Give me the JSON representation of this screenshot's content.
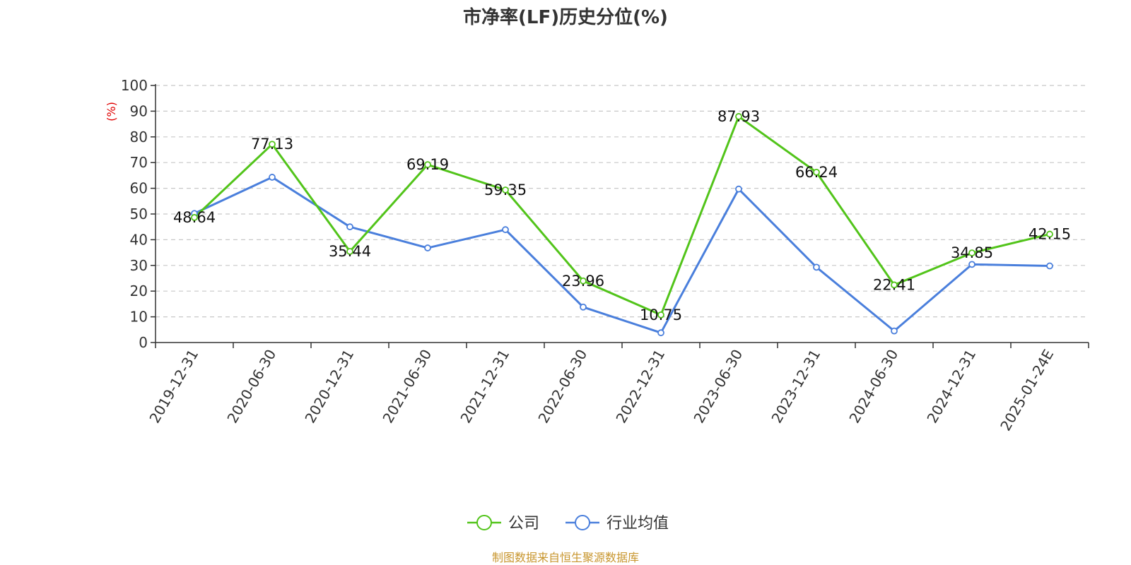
{
  "chart_data": {
    "type": "line",
    "title": "市净率(LF)历史分位(%)",
    "ylabel": "(%)",
    "ylim": [
      0,
      100
    ],
    "yticks": [
      0,
      10,
      20,
      30,
      40,
      50,
      60,
      70,
      80,
      90,
      100
    ],
    "grid": true,
    "categories": [
      "2019-12-31",
      "2020-06-30",
      "2020-12-31",
      "2021-06-30",
      "2021-12-31",
      "2022-06-30",
      "2022-12-31",
      "2023-06-30",
      "2023-12-31",
      "2024-06-30",
      "2024-12-31",
      "2025-01-24E"
    ],
    "series": [
      {
        "name": "公司",
        "color": "#52c41a",
        "values": [
          48.64,
          77.13,
          35.44,
          69.19,
          59.35,
          23.96,
          10.75,
          87.93,
          66.24,
          22.41,
          34.85,
          42.15
        ],
        "labels": [
          "48.64",
          "77.13",
          "35.44",
          "69.19",
          "59.35",
          "23.96",
          "10.75",
          "87.93",
          "66.24",
          "22.41",
          "34.85",
          "42.15"
        ]
      },
      {
        "name": "行业均值",
        "color": "#4a7fdc",
        "values": [
          50.2,
          64.3,
          45.0,
          36.8,
          43.9,
          13.8,
          3.8,
          59.7,
          29.3,
          4.5,
          30.4,
          29.8
        ]
      }
    ],
    "legend_position": "bottom-center",
    "ylabel_color": "#e00000"
  },
  "source": {
    "text": "制图数据来自恒生聚源数据库",
    "color": "#c8962e"
  }
}
